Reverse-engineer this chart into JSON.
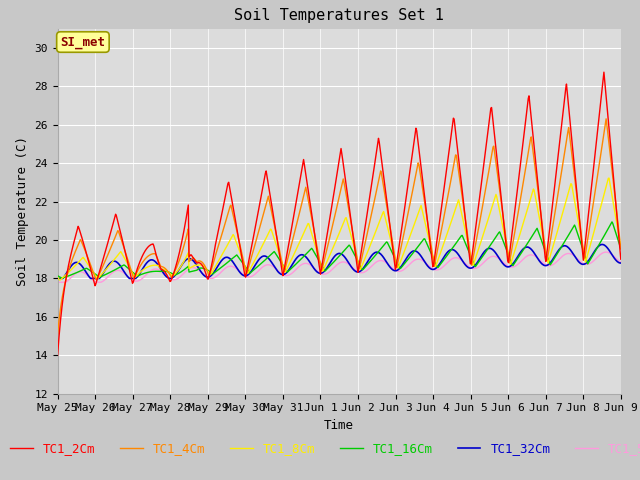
{
  "title": "Soil Temperatures Set 1",
  "xlabel": "Time",
  "ylabel": "Soil Temperature (C)",
  "ylim": [
    12,
    31
  ],
  "yticks": [
    12,
    14,
    16,
    18,
    20,
    22,
    24,
    26,
    28,
    30
  ],
  "annotation": "SI_met",
  "series_colors": {
    "TC1_2Cm": "#ff0000",
    "TC1_4Cm": "#ff8800",
    "TC1_8Cm": "#ffee00",
    "TC1_16Cm": "#00cc00",
    "TC1_32Cm": "#0000cc",
    "TC1_50Cm": "#ff99dd"
  },
  "fig_bg": "#c8c8c8",
  "plot_bg": "#dcdcdc",
  "grid_color": "#ffffff",
  "title_fontsize": 11,
  "axis_label_fontsize": 9,
  "tick_fontsize": 8,
  "legend_fontsize": 9,
  "xtick_labels": [
    "May 25",
    "May 26",
    "May 27",
    "May 28",
    "May 29",
    "May 30",
    "May 31",
    "Jun 1",
    "Jun 2",
    "Jun 3",
    "Jun 4",
    "Jun 5",
    "Jun 6",
    "Jun 7",
    "Jun 8",
    "Jun 9"
  ],
  "xtick_positions": [
    0,
    1,
    2,
    3,
    4,
    5,
    6,
    7,
    8,
    9,
    10,
    11,
    12,
    13,
    14,
    15
  ]
}
